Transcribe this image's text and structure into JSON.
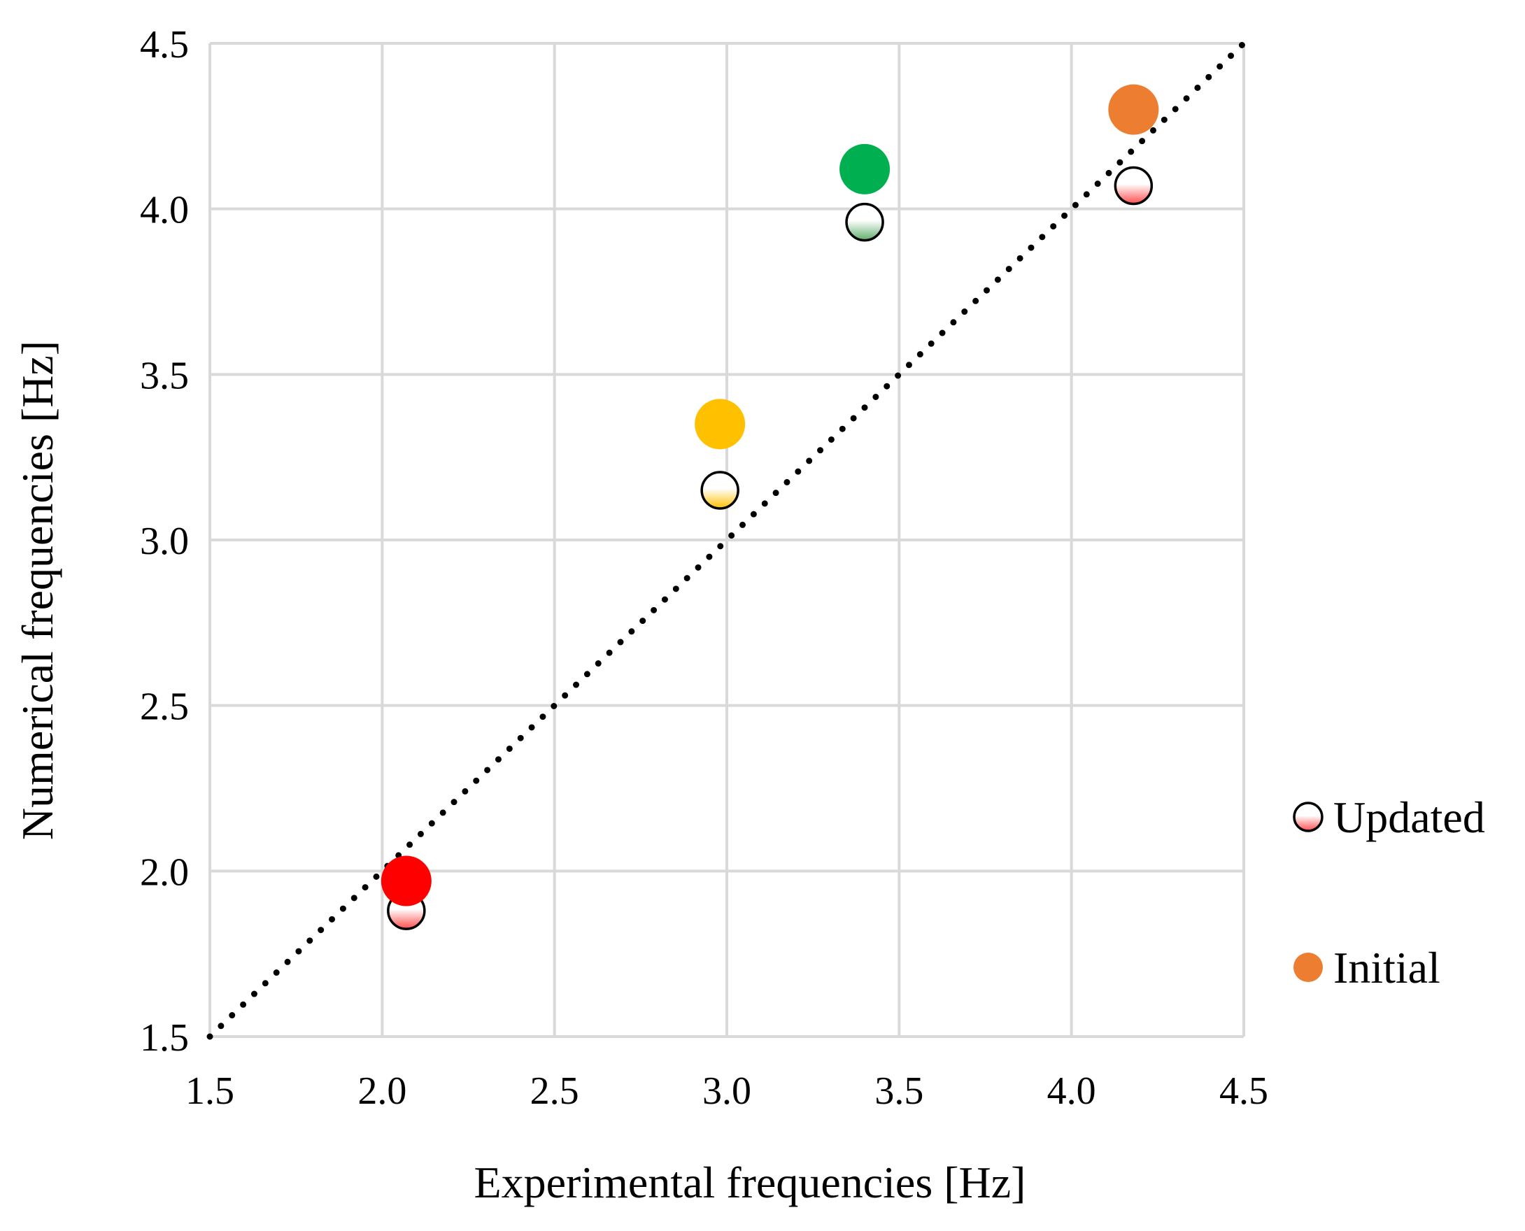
{
  "chart_data": {
    "type": "scatter",
    "title": "",
    "xlabel": "Experimental frequencies [Hz]",
    "ylabel": "Numerical frequencies [Hz]",
    "xlim": [
      1.5,
      4.5
    ],
    "ylim": [
      1.5,
      4.5
    ],
    "xticks": [
      1.5,
      2.0,
      2.5,
      3.0,
      3.5,
      4.0,
      4.5
    ],
    "yticks": [
      1.5,
      2.0,
      2.5,
      3.0,
      3.5,
      4.0,
      4.5
    ],
    "xtick_labels": [
      "1.5",
      "2.0",
      "2.5",
      "3.0",
      "3.5",
      "4.0",
      "4.5"
    ],
    "ytick_labels": [
      "1.5",
      "2.0",
      "2.5",
      "3.0",
      "3.5",
      "4.0",
      "4.5"
    ],
    "grid": true,
    "reference_line": {
      "style": "dotted",
      "from": [
        1.5,
        1.5
      ],
      "to": [
        4.5,
        4.5
      ],
      "color": "#000000"
    },
    "series": [
      {
        "name": "Updated",
        "marker": "hollow-gradient",
        "points": [
          {
            "x": 2.07,
            "y": 1.88,
            "color": "#ff4d4d"
          },
          {
            "x": 2.98,
            "y": 3.15,
            "color": "#ffc000"
          },
          {
            "x": 3.4,
            "y": 3.96,
            "color": "#5fae6b"
          },
          {
            "x": 4.18,
            "y": 4.07,
            "color": "#ff4d4d"
          }
        ]
      },
      {
        "name": "Initial",
        "marker": "filled",
        "points": [
          {
            "x": 2.07,
            "y": 1.97,
            "color": "#ff0000"
          },
          {
            "x": 2.98,
            "y": 3.35,
            "color": "#ffc000"
          },
          {
            "x": 3.4,
            "y": 4.12,
            "color": "#00b050"
          },
          {
            "x": 4.18,
            "y": 4.3,
            "color": "#ed7d31"
          }
        ]
      }
    ],
    "legend": {
      "position": "right",
      "entries": [
        {
          "label": "Updated",
          "color": "#ff4d4d",
          "marker": "hollow-gradient"
        },
        {
          "label": "Initial",
          "color": "#ed7d31",
          "marker": "filled"
        }
      ]
    }
  }
}
